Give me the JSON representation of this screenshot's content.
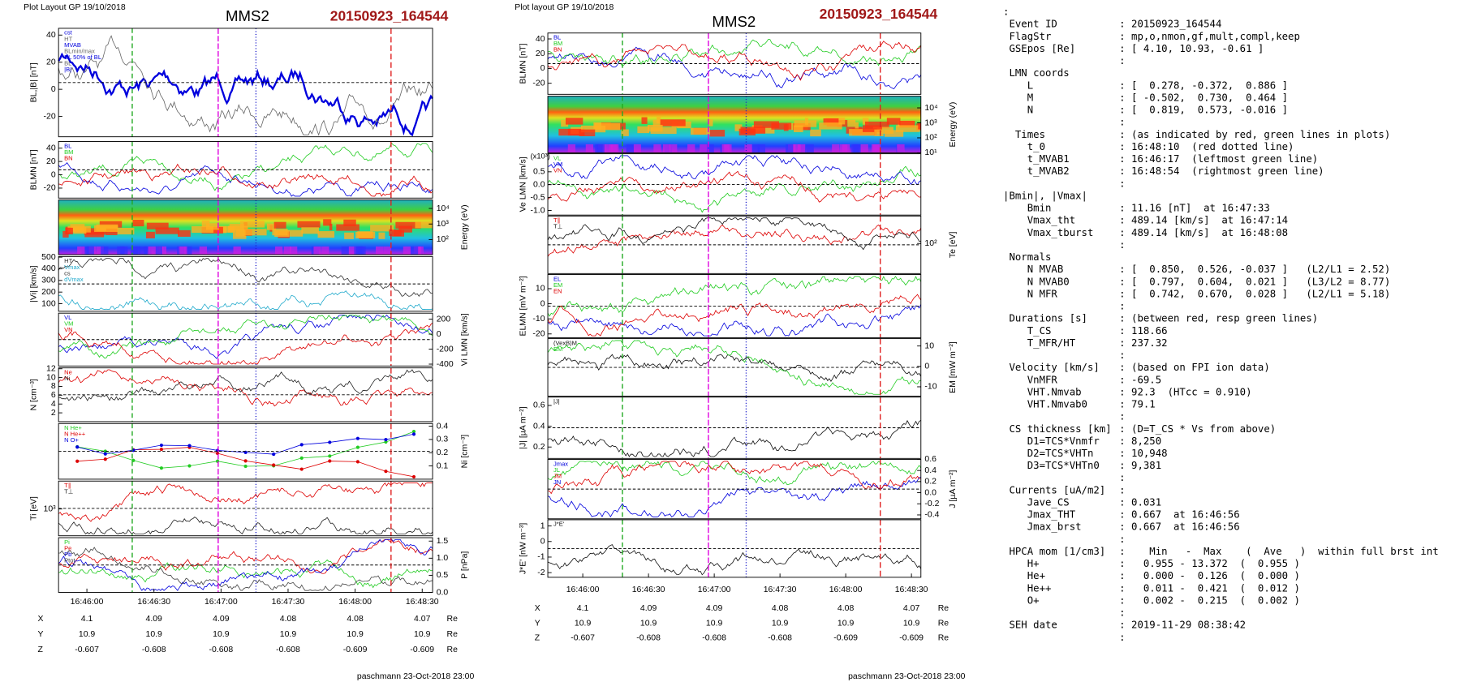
{
  "plots": [
    {
      "header": "Plot Layout GP 19/10/2018",
      "title": "MMS2",
      "event": "20150923_164544",
      "panels": [
        {
          "ylabel": "BL,|B| [nT]",
          "side": "left",
          "ylim": [
            -35,
            45
          ],
          "yticks": [
            40,
            20,
            0,
            -20
          ],
          "legend": [
            "cst",
            "HT",
            "MVAB",
            "BLmin/max",
            "BL 50% of BL",
            "BL",
            "|B|"
          ],
          "colors": [
            "#0000dd",
            "#666666"
          ]
        },
        {
          "ylabel": "BLMN [nT]",
          "side": "left",
          "ylim": [
            -35,
            50
          ],
          "yticks": [
            40,
            20,
            0,
            -20
          ],
          "legend": [
            "BL",
            "BM",
            "BN"
          ],
          "colors": [
            "#0000dd",
            "#22cc22",
            "#dd0000"
          ]
        },
        {
          "ylabel": "Energy (eV)",
          "side": "right",
          "log": true,
          "spectrogram": true,
          "ylim": [
            10.7,
            35000
          ],
          "yticks": [
            {
              "value": 10000,
              "label": "10⁴"
            },
            {
              "value": 1000,
              "label": "10³"
            },
            {
              "value": 100,
              "label": "10²"
            }
          ]
        },
        {
          "ylabel": "|Vi| [km/s]",
          "side": "left",
          "ylim": [
            35,
            505
          ],
          "yticks": [
            500,
            400,
            300,
            200,
            100
          ],
          "legend": [
            "HT",
            "Vmax",
            "cs",
            "dVmax"
          ],
          "colors": [
            "#333333",
            "#22aacc"
          ]
        },
        {
          "ylabel": "Vi LMN [km/s]",
          "side": "right",
          "ylim": [
            -425,
            280
          ],
          "yticks": [
            200,
            0,
            -200,
            -400
          ],
          "legend": [
            "VL",
            "VM",
            "VN"
          ],
          "colors": [
            "#0000dd",
            "#22cc22",
            "#dd0000"
          ]
        },
        {
          "ylabel": "N [cm⁻³]",
          "side": "left",
          "ylim": [
            0,
            12.2
          ],
          "yticks": [
            12,
            10,
            8,
            6,
            4,
            2
          ],
          "legend": [
            "Ne",
            "Ni"
          ],
          "colors": [
            "#dd0000",
            "#222222"
          ]
        },
        {
          "ylabel": "Ni [cm⁻³]",
          "side": "right",
          "ylim": [
            0,
            0.42
          ],
          "yticks": [
            0.4,
            0.3,
            0.2,
            0.1
          ],
          "legend": [
            "N He+",
            "N He++",
            "N O+"
          ],
          "colors": [
            "#22cc22",
            "#dd0000",
            "#0000dd"
          ],
          "markers": true
        },
        {
          "ylabel": "Ti [eV]",
          "side": "left",
          "log": true,
          "ylim": [
            300,
            3500
          ],
          "yticks": [
            {
              "value": 1000,
              "label": "10³"
            }
          ],
          "legend": [
            "T∥",
            "T⊥"
          ],
          "colors": [
            "#dd0000",
            "#222222"
          ]
        },
        {
          "ylabel": "P [nPa]",
          "side": "right",
          "ylim": [
            0,
            1.6
          ],
          "yticks": [
            1.5,
            {
              "value": 1,
              "label": "1.0"
            },
            0.5,
            {
              "value": 0,
              "label": "0.0"
            }
          ],
          "legend": [
            "Pi",
            "Pe",
            "Pb",
            "Ptot"
          ],
          "colors": [
            "#22cc22",
            "#dd0000",
            "#0000dd",
            "#444444"
          ]
        }
      ],
      "xticks": [
        "16:46:00",
        "16:46:30",
        "16:47:00",
        "16:47:30",
        "16:48:00",
        "16:48:30"
      ],
      "orbit": [
        {
          "label": "X",
          "values": [
            4.1,
            4.09,
            4.09,
            4.08,
            4.08,
            4.07
          ],
          "unit": "Re"
        },
        {
          "label": "Y",
          "values": [
            10.9,
            10.9,
            10.9,
            10.9,
            10.9,
            10.9
          ],
          "unit": "Re"
        },
        {
          "label": "Z",
          "values": [
            -0.607,
            -0.608,
            -0.608,
            -0.608,
            -0.609,
            -0.609
          ],
          "unit": "Re"
        }
      ],
      "footer": "paschmann 23-Oct-2018 23:00"
    },
    {
      "header": "Plot layout GP 19/10/2018",
      "title": "MMS2",
      "event": "20150923_164544",
      "panels": [
        {
          "ylabel": "BLMN [nT]",
          "side": "left",
          "ylim": [
            -35,
            48
          ],
          "yticks": [
            40,
            20,
            0,
            -20
          ],
          "legend": [
            "BL",
            "BM",
            "BN"
          ],
          "colors": [
            "#0000dd",
            "#22cc22",
            "#dd0000"
          ]
        },
        {
          "ylabel": "Energy (eV)",
          "side": "right",
          "log": true,
          "spectrogram": true,
          "ylim": [
            10,
            60000
          ],
          "yticks": [
            {
              "value": 10000,
              "label": "10⁴"
            },
            {
              "value": 1000,
              "label": "10³"
            },
            {
              "value": 100,
              "label": "10²"
            },
            {
              "value": 10,
              "label": "10¹"
            }
          ]
        },
        {
          "ylabel": "Ve LMN [km/s]",
          "ylabel2": "(x10³)",
          "side": "left",
          "ylim": [
            -1.18,
            1.2
          ],
          "yticks": [
            0.5,
            {
              "value": 0,
              "label": "0.0"
            },
            -0.5,
            {
              "value": -1,
              "label": "-1.0"
            }
          ],
          "legend": [
            "VL",
            "VM",
            "VN"
          ],
          "colors": [
            "#22cc22",
            "#0000dd",
            "#dd0000"
          ]
        },
        {
          "ylabel": "Te [eV]",
          "side": "right",
          "log": true,
          "ylim": [
            30,
            300
          ],
          "yticks": [
            {
              "value": 100,
              "label": "10²"
            }
          ],
          "legend": [
            "T∥",
            "T⊥"
          ],
          "colors": [
            "#dd0000",
            "#111111"
          ]
        },
        {
          "ylabel": "ELMN [mV m⁻²]",
          "side": "left",
          "ylim": [
            -22.5,
            19.4
          ],
          "yticks": [
            10,
            0,
            -10,
            -20
          ],
          "legend": [
            "EL",
            "EM",
            "EN"
          ],
          "colors": [
            "#0000dd",
            "#22cc22",
            "#dd0000"
          ]
        },
        {
          "ylabel": "EM [mW m⁻²]",
          "side": "right",
          "ylim": [
            -14.6,
            13.6
          ],
          "yticks": [
            10,
            0,
            -10
          ],
          "legend": [
            "(VexB)M",
            "EM"
          ],
          "colors": [
            "#111111",
            "#22cc22"
          ]
        },
        {
          "ylabel": "|J| [µA m⁻²]",
          "side": "left",
          "ylim": [
            0.09,
            0.68
          ],
          "yticks": [
            0.6,
            0.4,
            0.2
          ],
          "legend": [
            "|J|"
          ],
          "colors": [
            "#111111"
          ]
        },
        {
          "ylabel": "J [µA m⁻²]",
          "side": "right",
          "ylim": [
            -0.47,
            0.6
          ],
          "yticks": [
            0.6,
            0.4,
            0.2,
            {
              "value": 0,
              "label": "0.0"
            },
            -0.2,
            -0.4
          ],
          "legend": [
            "Jmax",
            "JL",
            "JM",
            "JN"
          ],
          "colors": [
            "#0000dd",
            "#22cc22",
            "#dd0000"
          ]
        },
        {
          "ylabel": "J*E' [nW m⁻³]",
          "side": "left",
          "ylim": [
            -2.3,
            1.4
          ],
          "yticks": [
            1,
            0,
            -1,
            -2
          ],
          "legend": [
            "J*E'"
          ],
          "colors": [
            "#111111"
          ]
        }
      ],
      "xticks": [
        "16:46:00",
        "16:46:30",
        "16:47:00",
        "16:47:30",
        "16:48:00",
        "16:48:30"
      ],
      "orbit": [
        {
          "label": "X",
          "values": [
            4.1,
            4.09,
            4.09,
            4.08,
            4.08,
            4.07
          ],
          "unit": "Re"
        },
        {
          "label": "Y",
          "values": [
            10.9,
            10.9,
            10.9,
            10.9,
            10.9,
            10.9
          ],
          "unit": "Re"
        },
        {
          "label": "Z",
          "values": [
            -0.607,
            -0.608,
            -0.608,
            -0.608,
            -0.609,
            -0.609
          ],
          "unit": "Re"
        }
      ],
      "footer": "paschmann 23-Oct-2018 23:00"
    }
  ],
  "summary": {
    "rows": [
      [
        ":"
      ],
      [
        " Event ID",
        ": 20150923_164544"
      ],
      [
        " FlagStr",
        ": mp,o,nmon,gf,mult,compl,keep"
      ],
      [
        " GSEpos [Re]",
        ": [ 4.10, 10.93, -0.61 ]"
      ],
      [
        ":"
      ],
      [
        " LMN coords"
      ],
      [
        "    L",
        ": [  0.278, -0.372,  0.886 ]"
      ],
      [
        "    M",
        ": [ -0.502,  0.730,  0.464 ]"
      ],
      [
        "    N",
        ": [  0.819,  0.573, -0.016 ]"
      ],
      [
        ":"
      ],
      [
        "  Times",
        ": (as indicated by red, green lines in plots)"
      ],
      [
        "    t_0",
        ": 16:48:10  (red dotted line)"
      ],
      [
        "    t_MVAB1",
        ": 16:46:17  (leftmost green line)"
      ],
      [
        "    t_MVAB2",
        ": 16:48:54  (rightmost green line)"
      ],
      [
        ":"
      ],
      [
        "|Bmin|, |Vmax|"
      ],
      [
        "    Bmin",
        ": 11.16 [nT]  at 16:47:33"
      ],
      [
        "    Vmax_tht",
        ": 489.14 [km/s]  at 16:47:14"
      ],
      [
        "    Vmax_tburst",
        ": 489.14 [km/s]  at 16:48:08"
      ],
      [
        ":"
      ],
      [
        " Normals"
      ],
      [
        "    N MVAB",
        ": [  0.850,  0.526, -0.037 ]   (L2/L1 = 2.52)"
      ],
      [
        "    N MVAB0",
        ": [  0.797,  0.604,  0.021 ]   (L3/L2 = 8.77)"
      ],
      [
        "    N MFR",
        ": [  0.742,  0.670,  0.028 ]   (L2/L1 = 5.18)"
      ],
      [
        ":"
      ],
      [
        " Durations [s]",
        ": (between red, resp green lines)"
      ],
      [
        "    T_CS",
        ": 118.66"
      ],
      [
        "    T_MFR/HT",
        ": 237.32"
      ],
      [
        ":"
      ],
      [
        " Velocity [km/s]",
        ": (based on FPI ion data)"
      ],
      [
        "    VnMFR",
        ": -69.5"
      ],
      [
        "    VHT.Nmvab",
        ": 92.3  (HTcc = 0.910)"
      ],
      [
        "    VHT.Nmvab0",
        ": 79.1"
      ],
      [
        ":"
      ],
      [
        " CS thickness [km]",
        ": (D=T_CS * Vs from above)"
      ],
      [
        "    D1=TCS*Vnmfr",
        ": 8,250"
      ],
      [
        "    D2=TCS*VHTn",
        ": 10,948"
      ],
      [
        "    D3=TCS*VHTn0",
        ": 9,381"
      ],
      [
        ":"
      ],
      [
        " Currents [uA/m2]",
        ":"
      ],
      [
        "    Jave_CS",
        ": 0.031"
      ],
      [
        "    Jmax_THT",
        ": 0.667  at 16:46:56"
      ],
      [
        "    Jmax_brst",
        ": 0.667  at 16:46:56"
      ],
      [
        ":"
      ],
      [
        " HPCA mom [1/cm3]",
        ":    Min   -  Max    (  Ave   )  within full brst int"
      ],
      [
        "    H+",
        ":   0.955 - 13.372  (  0.955 )"
      ],
      [
        "    He+",
        ":   0.000 -  0.126  (  0.000 )"
      ],
      [
        "    He++",
        ":   0.011 -  0.421  (  0.012 )"
      ],
      [
        "    O+",
        ":   0.002 -  0.215  (  0.002 )"
      ],
      [
        ":"
      ],
      [
        " SEH date",
        ": 2019-11-29 08:38:42"
      ],
      [
        ":"
      ]
    ]
  }
}
